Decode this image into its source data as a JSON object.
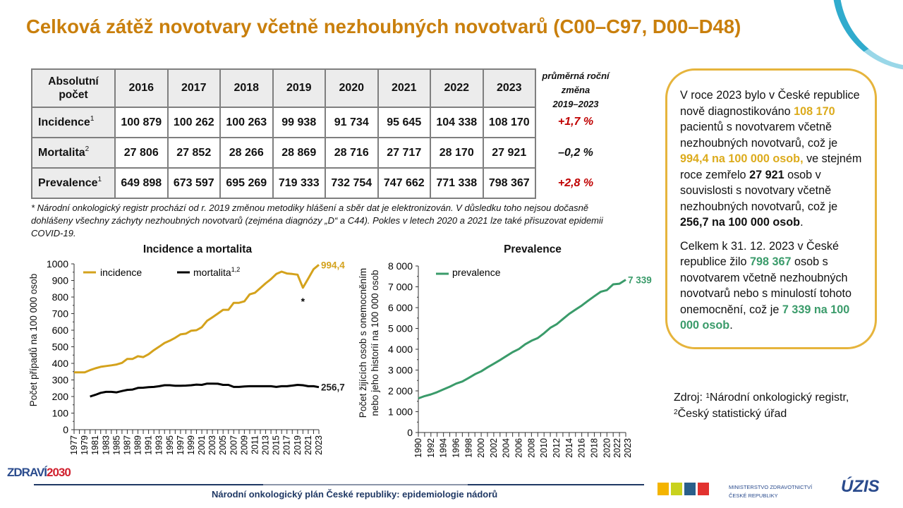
{
  "title": "Celková zátěž novotvary včetně nezhoubných novotvarů (C00–C97, D00–D48)",
  "table": {
    "corner": "Absolutní počet",
    "years": [
      "2016",
      "2017",
      "2018",
      "2019",
      "2020",
      "2021",
      "2022",
      "2023"
    ],
    "rows": [
      {
        "label": "Incidence",
        "sup": "1",
        "values": [
          "100 879",
          "100 262",
          "100 263",
          "99 938",
          "91 734",
          "95 645",
          "104 338",
          "108 170"
        ],
        "change": "+1,7 %",
        "change_color": "#c00000"
      },
      {
        "label": "Mortalita",
        "sup": "2",
        "values": [
          "27 806",
          "27 852",
          "28 266",
          "28 869",
          "28 716",
          "27 717",
          "28 170",
          "27 921"
        ],
        "change": "–0,2 %",
        "change_color": "#111111"
      },
      {
        "label": "Prevalence",
        "sup": "1",
        "values": [
          "649 898",
          "673 597",
          "695 269",
          "719 333",
          "732 754",
          "747 662",
          "771 338",
          "798 367"
        ],
        "change": "+2,8 %",
        "change_color": "#c00000"
      }
    ],
    "change_header": [
      "průměrná roční",
      "změna",
      "2019–2023"
    ]
  },
  "footnote": "* Národní onkologický registr prochází od r. 2019 změnou metodiky hlášení a sběr dat je elektronizován. V důsledku toho nejsou dočasně dohlášeny všechny záchyty nezhoubných novotvarů (zejména diagnózy „D“ a C44). Pokles v letech 2020 a 2021 lze také přisuzovat epidemii COVID-19.",
  "infobox": {
    "p1": [
      "V roce 2023 bylo v České republice nově diagnostikováno ",
      "108 170",
      " pacientů s novotvarem včetně nezhoubných novotvarů, což je ",
      "994,4 na 100 000 osob,",
      " ve stejném roce zemřelo ",
      "27 921",
      " osob v souvislosti s novotvary včetně nezhoubných novotvarů, což je ",
      "256,7 na 100 000 osob",
      "."
    ],
    "p2": [
      "Celkem k 31. 12. 2023 v České republice žilo ",
      "798 367",
      " osob s novotvarem včetně nezhoubných novotvarů nebo s minulostí tohoto onemocnění, což je ",
      "7 339 na 100 000 osob",
      "."
    ]
  },
  "source": {
    "line1": "Zdroj: ",
    "sup1": "1",
    "text1": "Národní onkologický registr,",
    "sup2": "2",
    "text2": "Český statistický úřad"
  },
  "chart_data": [
    {
      "type": "line",
      "title": "Incidence a mortalita",
      "ylabel": "Počet případů na 100 000 osob",
      "ylim": [
        0,
        1000
      ],
      "yticks": [
        0,
        100,
        200,
        300,
        400,
        500,
        600,
        700,
        800,
        900,
        1000
      ],
      "x": [
        1977,
        1978,
        1979,
        1980,
        1981,
        1982,
        1983,
        1984,
        1985,
        1986,
        1987,
        1988,
        1989,
        1990,
        1991,
        1992,
        1993,
        1994,
        1995,
        1996,
        1997,
        1998,
        1999,
        2000,
        2001,
        2002,
        2003,
        2004,
        2005,
        2006,
        2007,
        2008,
        2009,
        2010,
        2011,
        2012,
        2013,
        2014,
        2015,
        2016,
        2017,
        2018,
        2019,
        2020,
        2021,
        2022,
        2023
      ],
      "series": [
        {
          "name": "incidence",
          "color": "#d4a21c",
          "values": [
            346,
            346,
            346,
            359,
            370,
            379,
            384,
            388,
            393,
            403,
            427,
            427,
            443,
            438,
            455,
            480,
            501,
            523,
            537,
            554,
            575,
            579,
            597,
            600,
            618,
            657,
            678,
            700,
            723,
            723,
            765,
            765,
            774,
            816,
            826,
            854,
            883,
            908,
            939,
            953,
            942,
            939,
            935,
            856,
            911,
            968,
            994.4
          ],
          "end_label": "994,4"
        },
        {
          "name": "mortalita",
          "sup": "1,2",
          "color": "#000000",
          "values": [
            null,
            null,
            null,
            200,
            210,
            222,
            228,
            228,
            225,
            233,
            240,
            242,
            252,
            253,
            256,
            258,
            262,
            268,
            268,
            265,
            265,
            266,
            268,
            272,
            270,
            278,
            278,
            277,
            270,
            270,
            258,
            258,
            261,
            262,
            262,
            262,
            262,
            262,
            258,
            262,
            262,
            266,
            270,
            268,
            262,
            262,
            256.7
          ],
          "end_label": "256,7"
        }
      ],
      "annotation": {
        "x": 2020,
        "text": "*"
      },
      "legend": "top",
      "grid": false
    },
    {
      "type": "line",
      "title": "Prevalence",
      "ylabel": [
        "Počet žijících osob s onemocněním",
        "nebo jeho historií na 100 000 osob"
      ],
      "ylim": [
        0,
        8000
      ],
      "yticks": [
        "0",
        "1 000",
        "2 000",
        "3 000",
        "4 000",
        "5 000",
        "6 000",
        "7 000",
        "8 000"
      ],
      "x": [
        1990,
        1991,
        1992,
        1993,
        1994,
        1995,
        1996,
        1997,
        1998,
        1999,
        2000,
        2001,
        2002,
        2003,
        2004,
        2005,
        2006,
        2007,
        2008,
        2009,
        2010,
        2011,
        2012,
        2013,
        2014,
        2015,
        2016,
        2017,
        2018,
        2019,
        2020,
        2021,
        2022,
        2023
      ],
      "series": [
        {
          "name": "prevalence",
          "color": "#3a9b6a",
          "values": [
            1640,
            1750,
            1830,
            1940,
            2070,
            2200,
            2350,
            2450,
            2620,
            2800,
            2940,
            3130,
            3300,
            3480,
            3670,
            3860,
            4010,
            4240,
            4410,
            4540,
            4770,
            5030,
            5200,
            5450,
            5700,
            5900,
            6100,
            6330,
            6550,
            6760,
            6840,
            7120,
            7150,
            7339
          ],
          "end_label": "7 339"
        }
      ],
      "legend": "top-left",
      "grid": false
    }
  ],
  "footer": {
    "text": "Národní onkologický plán České republiky: epidemiologie nádorů",
    "logo_left": [
      "ZDRAVÍ",
      "2030"
    ],
    "ministry": [
      "MINISTERSTVO ZDRAVOTNICTVÍ",
      "ČESKÉ REPUBLIKY"
    ],
    "logo_right": "ÚZIS ČR"
  }
}
